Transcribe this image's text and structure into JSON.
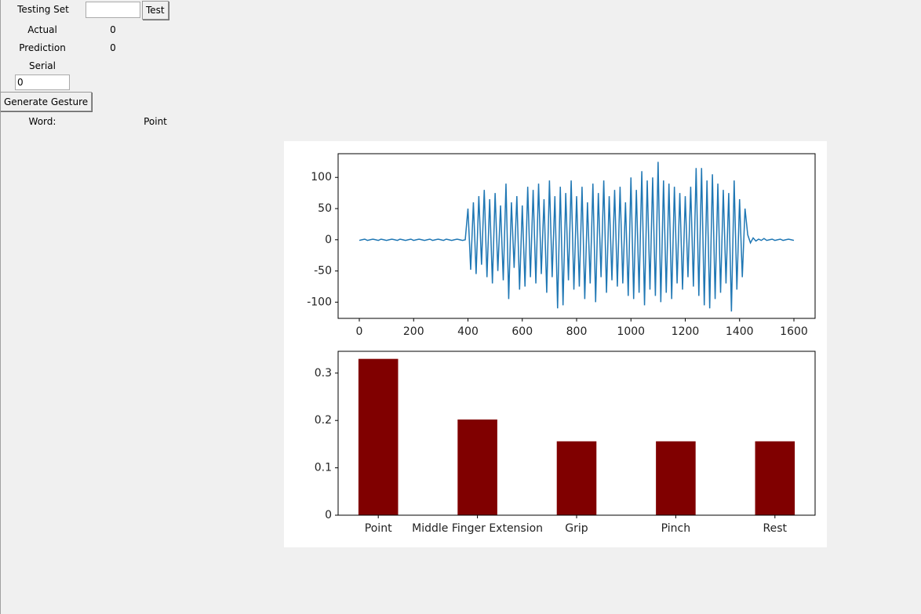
{
  "controls": {
    "testing_set_label": "Testing Set",
    "test_button": "Test",
    "actual_label": "Actual",
    "actual_value": "0",
    "prediction_label": "Prediction",
    "prediction_value": "0",
    "serial_label": "Serial",
    "serial_input": "0",
    "generate_button": "Generate Gesture",
    "word_label": "Word:",
    "word_value": "Point"
  },
  "chart_data": [
    {
      "type": "line",
      "color": "#1f77b4",
      "x": [
        0,
        10,
        20,
        30,
        40,
        50,
        60,
        70,
        80,
        90,
        100,
        110,
        120,
        130,
        140,
        150,
        160,
        170,
        180,
        190,
        200,
        210,
        220,
        230,
        240,
        250,
        260,
        270,
        280,
        290,
        300,
        310,
        320,
        330,
        340,
        350,
        360,
        370,
        380,
        390,
        400,
        410,
        420,
        430,
        440,
        450,
        460,
        470,
        480,
        490,
        500,
        510,
        520,
        530,
        540,
        550,
        560,
        570,
        580,
        590,
        600,
        610,
        620,
        630,
        640,
        650,
        660,
        670,
        680,
        690,
        700,
        710,
        720,
        730,
        740,
        750,
        760,
        770,
        780,
        790,
        800,
        810,
        820,
        830,
        840,
        850,
        860,
        870,
        880,
        890,
        900,
        910,
        920,
        930,
        940,
        950,
        960,
        970,
        980,
        990,
        1000,
        1010,
        1020,
        1030,
        1040,
        1050,
        1060,
        1070,
        1080,
        1090,
        1100,
        1110,
        1120,
        1130,
        1140,
        1150,
        1160,
        1170,
        1180,
        1190,
        1200,
        1210,
        1220,
        1230,
        1240,
        1250,
        1260,
        1270,
        1280,
        1290,
        1300,
        1310,
        1320,
        1330,
        1340,
        1350,
        1360,
        1370,
        1380,
        1390,
        1400,
        1410,
        1420,
        1430,
        1440,
        1450,
        1460,
        1470,
        1480,
        1490,
        1500,
        1510,
        1520,
        1530,
        1540,
        1550,
        1560,
        1570,
        1580,
        1590,
        1600
      ],
      "values": [
        -1,
        0,
        1,
        -1,
        0,
        1,
        0,
        -1,
        1,
        0,
        -1,
        0,
        1,
        0,
        -1,
        1,
        0,
        -1,
        0,
        1,
        -1,
        0,
        1,
        0,
        -1,
        0,
        1,
        -1,
        0,
        1,
        0,
        -1,
        1,
        0,
        -1,
        0,
        1,
        0,
        -1,
        0,
        50,
        -48,
        60,
        -55,
        70,
        -40,
        80,
        -60,
        65,
        -70,
        75,
        -50,
        55,
        -65,
        90,
        -95,
        60,
        -45,
        70,
        -80,
        55,
        -75,
        85,
        -60,
        80,
        -70,
        90,
        -55,
        65,
        -85,
        95,
        -60,
        70,
        -110,
        85,
        -105,
        75,
        -65,
        95,
        -80,
        70,
        -75,
        85,
        -95,
        60,
        -70,
        90,
        -100,
        75,
        -60,
        95,
        -85,
        70,
        -65,
        80,
        -75,
        85,
        -70,
        60,
        -90,
        100,
        -95,
        80,
        -85,
        110,
        -105,
        95,
        -80,
        100,
        -90,
        125,
        -100,
        95,
        -85,
        90,
        -95,
        85,
        -70,
        75,
        -80,
        70,
        -60,
        85,
        -75,
        115,
        -90,
        115,
        -105,
        95,
        -110,
        105,
        -95,
        90,
        -85,
        80,
        -70,
        75,
        -115,
        95,
        -80,
        65,
        -60,
        50,
        8,
        -5,
        3,
        -2,
        1,
        -1,
        2,
        -1,
        0,
        1,
        -1,
        0,
        1,
        -1,
        0,
        1,
        0,
        -1
      ],
      "xlim": [
        -78,
        1678
      ],
      "xticks": [
        0,
        200,
        400,
        600,
        800,
        1000,
        1200,
        1400,
        1600
      ],
      "ylim": [
        -126,
        138
      ],
      "yticks": [
        -100,
        -50,
        0,
        50,
        100
      ]
    },
    {
      "type": "bar",
      "color": "#800000",
      "categories": [
        "Point",
        "Middle Finger Extension",
        "Grip",
        "Pinch",
        "Rest"
      ],
      "values": [
        0.33,
        0.202,
        0.156,
        0.156,
        0.156
      ],
      "ylim": [
        0,
        0.346
      ],
      "yticks": [
        0.0,
        0.1,
        0.2,
        0.3
      ]
    }
  ]
}
